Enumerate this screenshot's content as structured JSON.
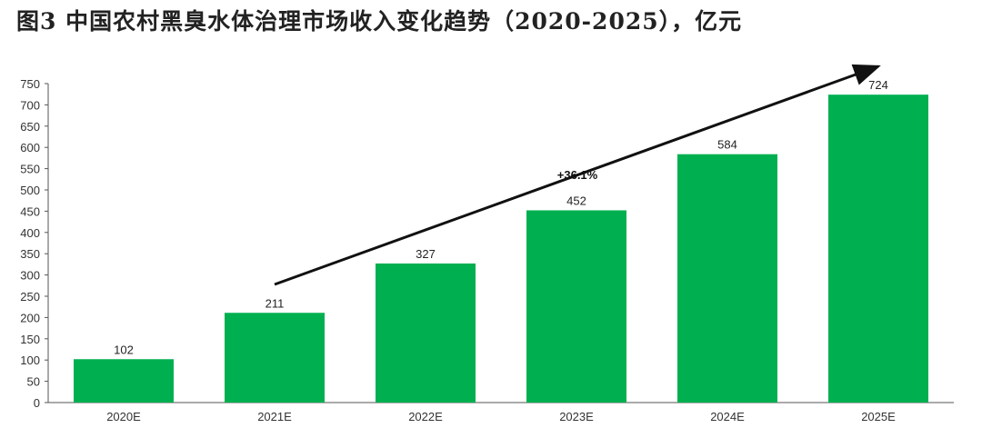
{
  "chart_data": {
    "type": "bar",
    "title": "图3 中国农村黑臭水体治理市场收入变化趋势（2020-2025），亿元",
    "categories": [
      "2020E",
      "2021E",
      "2022E",
      "2023E",
      "2024E",
      "2025E"
    ],
    "values": [
      102,
      211,
      327,
      452,
      584,
      724
    ],
    "data_labels": [
      "102",
      "211",
      "327",
      "452",
      "584",
      "724"
    ],
    "ylim": [
      0,
      750
    ],
    "yticks": [
      0,
      50,
      100,
      150,
      200,
      250,
      300,
      350,
      400,
      450,
      500,
      550,
      600,
      650,
      700,
      750
    ],
    "xlabel": "",
    "ylabel": "",
    "grid": false,
    "bar_color": "#00B050",
    "annotation": {
      "text": "+36.1%",
      "type": "trend-arrow",
      "from_category": "2021E",
      "to_category": "2025E"
    }
  }
}
